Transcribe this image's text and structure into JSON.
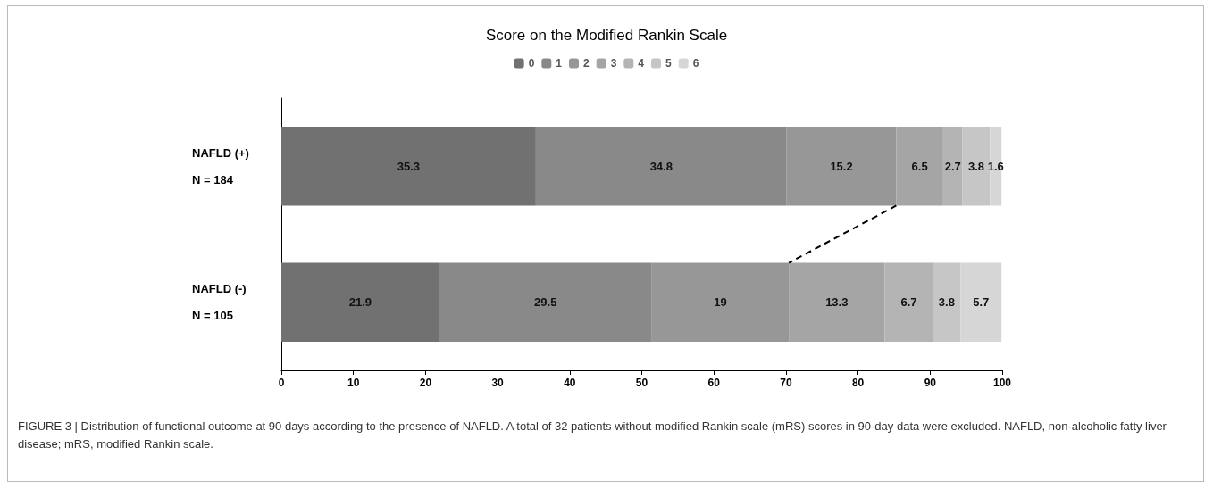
{
  "chart_data": {
    "type": "bar",
    "orientation": "horizontal",
    "stacked": true,
    "title": "Score on the Modified Rankin Scale",
    "categories": [
      "NAFLD (+)\nN = 184",
      "NAFLD (-)\nN = 105"
    ],
    "series": [
      {
        "name": "0",
        "color": "#717171",
        "values": [
          35.3,
          21.9
        ]
      },
      {
        "name": "1",
        "color": "#898989",
        "values": [
          34.8,
          29.5
        ]
      },
      {
        "name": "2",
        "color": "#979797",
        "values": [
          15.2,
          19
        ]
      },
      {
        "name": "3",
        "color": "#a5a5a5",
        "values": [
          6.5,
          13.3
        ]
      },
      {
        "name": "4",
        "color": "#b4b4b4",
        "values": [
          2.7,
          6.7
        ]
      },
      {
        "name": "5",
        "color": "#c6c6c6",
        "values": [
          3.8,
          3.8
        ]
      },
      {
        "name": "6",
        "color": "#d6d6d6",
        "values": [
          1.6,
          5.7
        ]
      }
    ],
    "xlim": [
      0,
      100
    ],
    "xticks": [
      0,
      10,
      20,
      30,
      40,
      50,
      60,
      70,
      80,
      90,
      100
    ],
    "data_labels": true,
    "grid": false,
    "legend": "top",
    "annotations": [
      "FIGURE 3 | Distribution of functional outcome at 90 days according to the presence of NAFLD. A total of 32 patients without modified Rankin scale (mRS) scores in 90-day data were excluded. NAFLD, non-alcoholic fatty liver disease; mRS, modified Rankin scale."
    ]
  }
}
